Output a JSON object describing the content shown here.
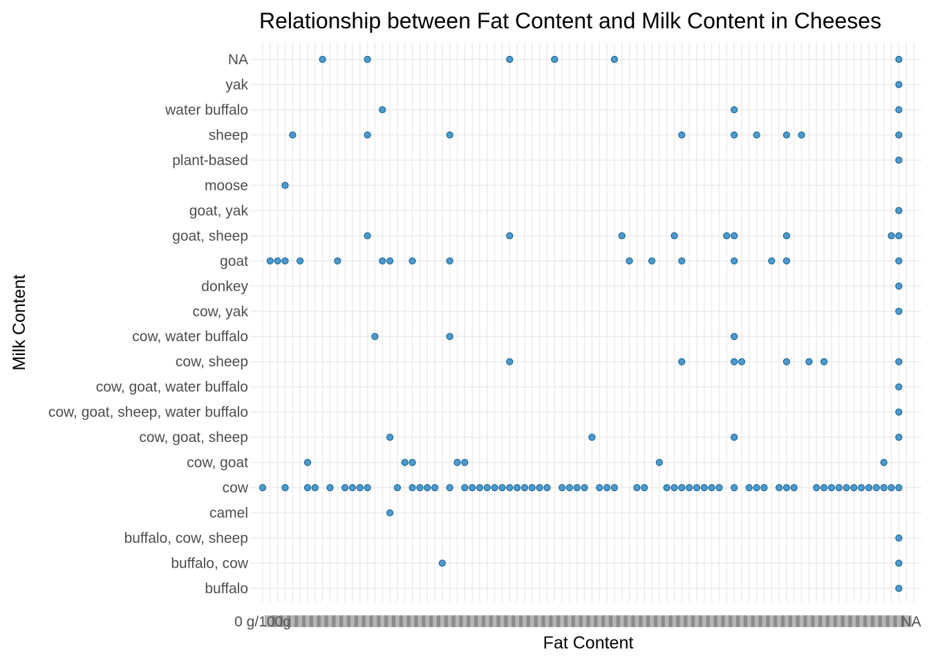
{
  "chart_data": {
    "type": "scatter",
    "title": "Relationship between Fat Content and Milk Content in Cheeses",
    "xlabel": "Fat Content",
    "ylabel": "Milk Content",
    "grid": true,
    "legend": "none",
    "point_color": "#1f7fbf",
    "y_categories": [
      "buffalo",
      "buffalo, cow",
      "buffalo, cow, sheep",
      "camel",
      "cow",
      "cow, goat",
      "cow, goat, sheep",
      "cow, goat, sheep, water buffalo",
      "cow, goat, water buffalo",
      "cow, sheep",
      "cow, water buffalo",
      "cow, yak",
      "donkey",
      "goat",
      "goat, sheep",
      "goat, yak",
      "moose",
      "plant-based",
      "sheep",
      "water buffalo",
      "yak",
      "NA"
    ],
    "x_first_tick_label": "0 g/100g",
    "x_last_tick_label": "NA",
    "x_category_count": 88,
    "points": [
      {
        "y": "NA",
        "x": [
          8,
          14,
          33,
          39,
          47,
          85
        ]
      },
      {
        "y": "yak",
        "x": [
          85
        ]
      },
      {
        "y": "water buffalo",
        "x": [
          16,
          63,
          85
        ]
      },
      {
        "y": "sheep",
        "x": [
          4,
          14,
          25,
          56,
          63,
          66,
          70,
          72,
          85
        ]
      },
      {
        "y": "plant-based",
        "x": [
          85
        ]
      },
      {
        "y": "moose",
        "x": [
          3
        ]
      },
      {
        "y": "goat, yak",
        "x": [
          85
        ]
      },
      {
        "y": "goat, sheep",
        "x": [
          14,
          33,
          48,
          55,
          62,
          63,
          70,
          84,
          85
        ]
      },
      {
        "y": "goat",
        "x": [
          1,
          2,
          3,
          5,
          10,
          16,
          17,
          20,
          25,
          49,
          52,
          56,
          63,
          68,
          70,
          85
        ]
      },
      {
        "y": "donkey",
        "x": [
          85
        ]
      },
      {
        "y": "cow, yak",
        "x": [
          85
        ]
      },
      {
        "y": "cow, water buffalo",
        "x": [
          15,
          25,
          63
        ]
      },
      {
        "y": "cow, sheep",
        "x": [
          33,
          56,
          63,
          64,
          70,
          73,
          75,
          85
        ]
      },
      {
        "y": "cow, goat, water buffalo",
        "x": [
          85
        ]
      },
      {
        "y": "cow, goat, sheep, water buffalo",
        "x": [
          85
        ]
      },
      {
        "y": "cow, goat, sheep",
        "x": [
          17,
          44,
          63,
          85
        ]
      },
      {
        "y": "cow, goat",
        "x": [
          6,
          19,
          20,
          26,
          27,
          53,
          83
        ]
      },
      {
        "y": "cow",
        "x": [
          0,
          3,
          6,
          7,
          9,
          11,
          12,
          13,
          14,
          18,
          20,
          21,
          22,
          23,
          25,
          27,
          28,
          29,
          30,
          31,
          32,
          33,
          34,
          35,
          36,
          37,
          38,
          40,
          41,
          42,
          43,
          45,
          46,
          47,
          50,
          51,
          54,
          55,
          56,
          57,
          58,
          59,
          60,
          61,
          63,
          65,
          66,
          67,
          69,
          70,
          71,
          74,
          75,
          76,
          77,
          78,
          79,
          80,
          81,
          82,
          83,
          84,
          85
        ]
      },
      {
        "y": "camel",
        "x": [
          17
        ]
      },
      {
        "y": "buffalo, cow, sheep",
        "x": [
          85
        ]
      },
      {
        "y": "buffalo, cow",
        "x": [
          24,
          85
        ]
      },
      {
        "y": "buffalo",
        "x": [
          85
        ]
      }
    ]
  }
}
